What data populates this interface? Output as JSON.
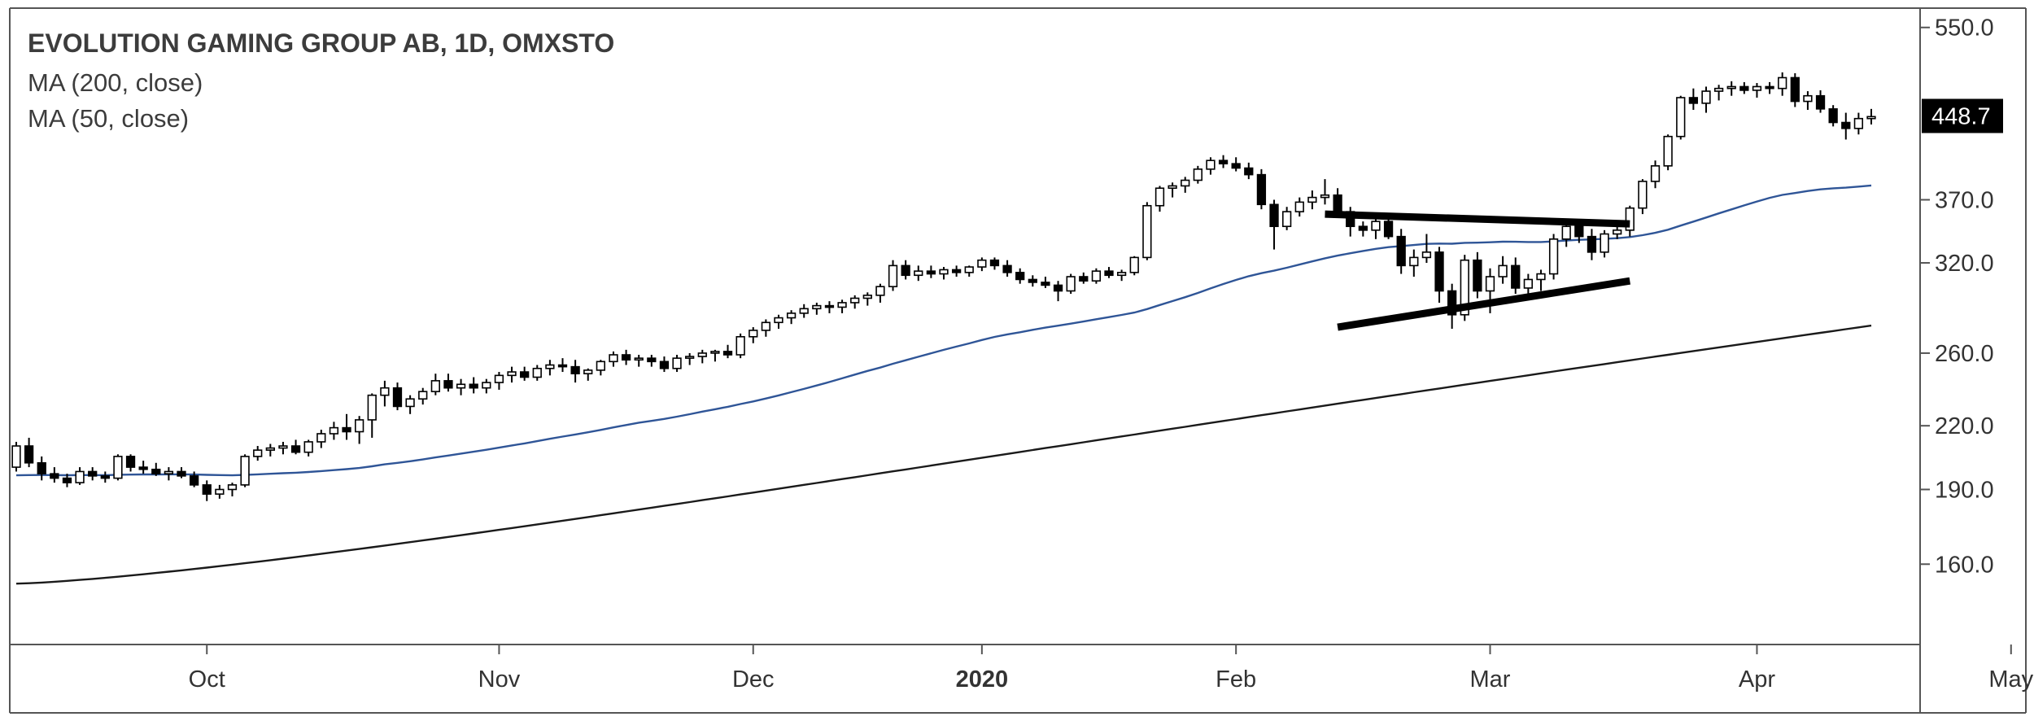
{
  "chart_data": {
    "type": "candlestick",
    "title": "EVOLUTION GAMING GROUP AB, 1D, OMXSTO",
    "indicators": [
      "MA (200, close)",
      "MA (50, close)"
    ],
    "indicator_colors": {
      "ma200": "#1a1a1a",
      "ma50": "#2f5597"
    },
    "y_axis": {
      "ticks": [
        "550.0",
        "448.7",
        "370.0",
        "320.0",
        "260.0",
        "220.0",
        "190.0",
        "160.0"
      ],
      "scale": "log",
      "range": [
        133,
        575
      ]
    },
    "x_axis": {
      "labels": [
        {
          "text": "Oct",
          "bold": false
        },
        {
          "text": "Nov",
          "bold": false
        },
        {
          "text": "Dec",
          "bold": false
        },
        {
          "text": "2020",
          "bold": true
        },
        {
          "text": "Feb",
          "bold": false
        },
        {
          "text": "Mar",
          "bold": false
        },
        {
          "text": "Apr",
          "bold": false
        },
        {
          "text": "May",
          "bold": false
        }
      ],
      "label_bar_index": [
        15,
        38,
        58,
        76,
        96,
        116,
        137,
        157
      ]
    },
    "last_price": "448.7",
    "ohlc": [
      [
        200,
        212,
        198,
        210
      ],
      [
        210,
        214,
        200,
        202
      ],
      [
        202,
        205,
        194,
        197
      ],
      [
        197,
        200,
        193,
        195
      ],
      [
        195,
        197,
        191,
        193
      ],
      [
        193,
        200,
        192,
        198
      ],
      [
        198,
        200,
        194,
        196
      ],
      [
        196,
        198,
        193,
        195
      ],
      [
        195,
        206,
        194,
        205
      ],
      [
        205,
        206,
        198,
        200
      ],
      [
        200,
        203,
        197,
        199
      ],
      [
        199,
        202,
        196,
        197
      ],
      [
        197,
        200,
        194,
        198
      ],
      [
        198,
        200,
        195,
        196
      ],
      [
        196,
        198,
        191,
        192
      ],
      [
        192,
        194,
        185,
        188
      ],
      [
        188,
        192,
        186,
        190
      ],
      [
        190,
        193,
        187,
        192
      ],
      [
        192,
        206,
        191,
        205
      ],
      [
        205,
        210,
        203,
        208
      ],
      [
        208,
        211,
        205,
        209
      ],
      [
        209,
        212,
        206,
        210
      ],
      [
        210,
        213,
        206,
        207
      ],
      [
        207,
        213,
        205,
        212
      ],
      [
        212,
        218,
        209,
        216
      ],
      [
        216,
        222,
        213,
        219
      ],
      [
        219,
        226,
        213,
        217
      ],
      [
        217,
        225,
        211,
        223
      ],
      [
        223,
        237,
        214,
        236
      ],
      [
        236,
        244,
        230,
        240
      ],
      [
        240,
        243,
        228,
        230
      ],
      [
        230,
        236,
        226,
        234
      ],
      [
        234,
        240,
        231,
        238
      ],
      [
        238,
        248,
        236,
        244
      ],
      [
        244,
        248,
        238,
        240
      ],
      [
        240,
        245,
        236,
        242
      ],
      [
        242,
        246,
        237,
        240
      ],
      [
        240,
        245,
        237,
        243
      ],
      [
        243,
        249,
        239,
        247
      ],
      [
        247,
        252,
        243,
        249
      ],
      [
        249,
        252,
        244,
        246
      ],
      [
        246,
        253,
        244,
        251
      ],
      [
        251,
        256,
        247,
        253
      ],
      [
        253,
        257,
        249,
        252
      ],
      [
        252,
        256,
        243,
        248
      ],
      [
        248,
        251,
        244,
        250
      ],
      [
        250,
        256,
        247,
        255
      ],
      [
        255,
        261,
        252,
        259
      ],
      [
        259,
        262,
        253,
        256
      ],
      [
        256,
        259,
        252,
        257
      ],
      [
        257,
        259,
        252,
        255
      ],
      [
        255,
        258,
        249,
        251
      ],
      [
        251,
        259,
        249,
        257
      ],
      [
        257,
        260,
        253,
        258
      ],
      [
        258,
        262,
        254,
        260
      ],
      [
        260,
        262,
        255,
        261
      ],
      [
        261,
        265,
        257,
        259
      ],
      [
        259,
        272,
        257,
        270
      ],
      [
        270,
        276,
        266,
        274
      ],
      [
        274,
        281,
        270,
        279
      ],
      [
        279,
        284,
        275,
        282
      ],
      [
        282,
        287,
        278,
        285
      ],
      [
        285,
        291,
        282,
        288
      ],
      [
        288,
        292,
        284,
        290
      ],
      [
        290,
        293,
        285,
        289
      ],
      [
        289,
        294,
        285,
        292
      ],
      [
        292,
        297,
        288,
        295
      ],
      [
        295,
        299,
        290,
        297
      ],
      [
        297,
        305,
        292,
        303
      ],
      [
        303,
        322,
        300,
        318
      ],
      [
        318,
        322,
        308,
        311
      ],
      [
        311,
        318,
        307,
        314
      ],
      [
        314,
        318,
        309,
        312
      ],
      [
        312,
        317,
        308,
        315
      ],
      [
        315,
        318,
        310,
        313
      ],
      [
        313,
        318,
        310,
        317
      ],
      [
        317,
        324,
        314,
        322
      ],
      [
        322,
        324,
        315,
        318
      ],
      [
        318,
        322,
        310,
        313
      ],
      [
        313,
        316,
        305,
        308
      ],
      [
        308,
        311,
        303,
        306
      ],
      [
        306,
        310,
        302,
        304
      ],
      [
        304,
        307,
        293,
        300
      ],
      [
        300,
        312,
        298,
        310
      ],
      [
        310,
        313,
        305,
        307
      ],
      [
        307,
        316,
        305,
        314
      ],
      [
        314,
        317,
        309,
        311
      ],
      [
        311,
        315,
        307,
        313
      ],
      [
        313,
        325,
        311,
        324
      ],
      [
        324,
        368,
        322,
        365
      ],
      [
        365,
        382,
        360,
        380
      ],
      [
        380,
        385,
        372,
        382
      ],
      [
        382,
        390,
        376,
        387
      ],
      [
        387,
        400,
        384,
        397
      ],
      [
        397,
        408,
        392,
        405
      ],
      [
        405,
        410,
        398,
        402
      ],
      [
        402,
        408,
        395,
        398
      ],
      [
        398,
        403,
        388,
        392
      ],
      [
        392,
        397,
        362,
        366
      ],
      [
        366,
        370,
        330,
        348
      ],
      [
        348,
        364,
        345,
        360
      ],
      [
        360,
        372,
        356,
        368
      ],
      [
        368,
        378,
        362,
        372
      ],
      [
        372,
        388,
        366,
        374
      ],
      [
        374,
        380,
        355,
        360
      ],
      [
        360,
        364,
        340,
        348
      ],
      [
        348,
        352,
        340,
        345
      ],
      [
        345,
        355,
        338,
        352
      ],
      [
        352,
        356,
        338,
        340
      ],
      [
        340,
        346,
        312,
        318
      ],
      [
        318,
        330,
        310,
        324
      ],
      [
        324,
        342,
        320,
        328
      ],
      [
        328,
        332,
        292,
        300
      ],
      [
        300,
        305,
        275,
        284
      ],
      [
        284,
        326,
        280,
        322
      ],
      [
        322,
        328,
        295,
        300
      ],
      [
        300,
        316,
        285,
        310
      ],
      [
        310,
        325,
        305,
        318
      ],
      [
        318,
        324,
        298,
        302
      ],
      [
        302,
        312,
        295,
        308
      ],
      [
        308,
        315,
        300,
        312
      ],
      [
        312,
        342,
        308,
        338
      ],
      [
        338,
        354,
        332,
        348
      ],
      [
        348,
        352,
        335,
        340
      ],
      [
        340,
        346,
        322,
        328
      ],
      [
        328,
        345,
        324,
        342
      ],
      [
        342,
        350,
        338,
        345
      ],
      [
        345,
        365,
        340,
        363
      ],
      [
        363,
        388,
        358,
        386
      ],
      [
        386,
        405,
        380,
        400
      ],
      [
        400,
        430,
        396,
        428
      ],
      [
        428,
        470,
        425,
        468
      ],
      [
        468,
        478,
        455,
        462
      ],
      [
        462,
        480,
        452,
        475
      ],
      [
        475,
        482,
        465,
        478
      ],
      [
        478,
        486,
        470,
        480
      ],
      [
        480,
        485,
        472,
        476
      ],
      [
        476,
        484,
        468,
        480
      ],
      [
        480,
        485,
        472,
        478
      ],
      [
        478,
        496,
        470,
        490
      ],
      [
        490,
        495,
        458,
        464
      ],
      [
        464,
        475,
        455,
        470
      ],
      [
        470,
        476,
        452,
        456
      ],
      [
        456,
        460,
        438,
        442
      ],
      [
        442,
        452,
        425,
        436
      ],
      [
        436,
        452,
        430,
        446
      ],
      [
        446,
        456,
        440,
        448
      ]
    ],
    "trendlines": [
      {
        "from": [
          103,
          358
        ],
        "to": [
          127,
          350
        ]
      },
      {
        "from": [
          104,
          276
        ],
        "to": [
          127,
          307
        ]
      }
    ]
  }
}
